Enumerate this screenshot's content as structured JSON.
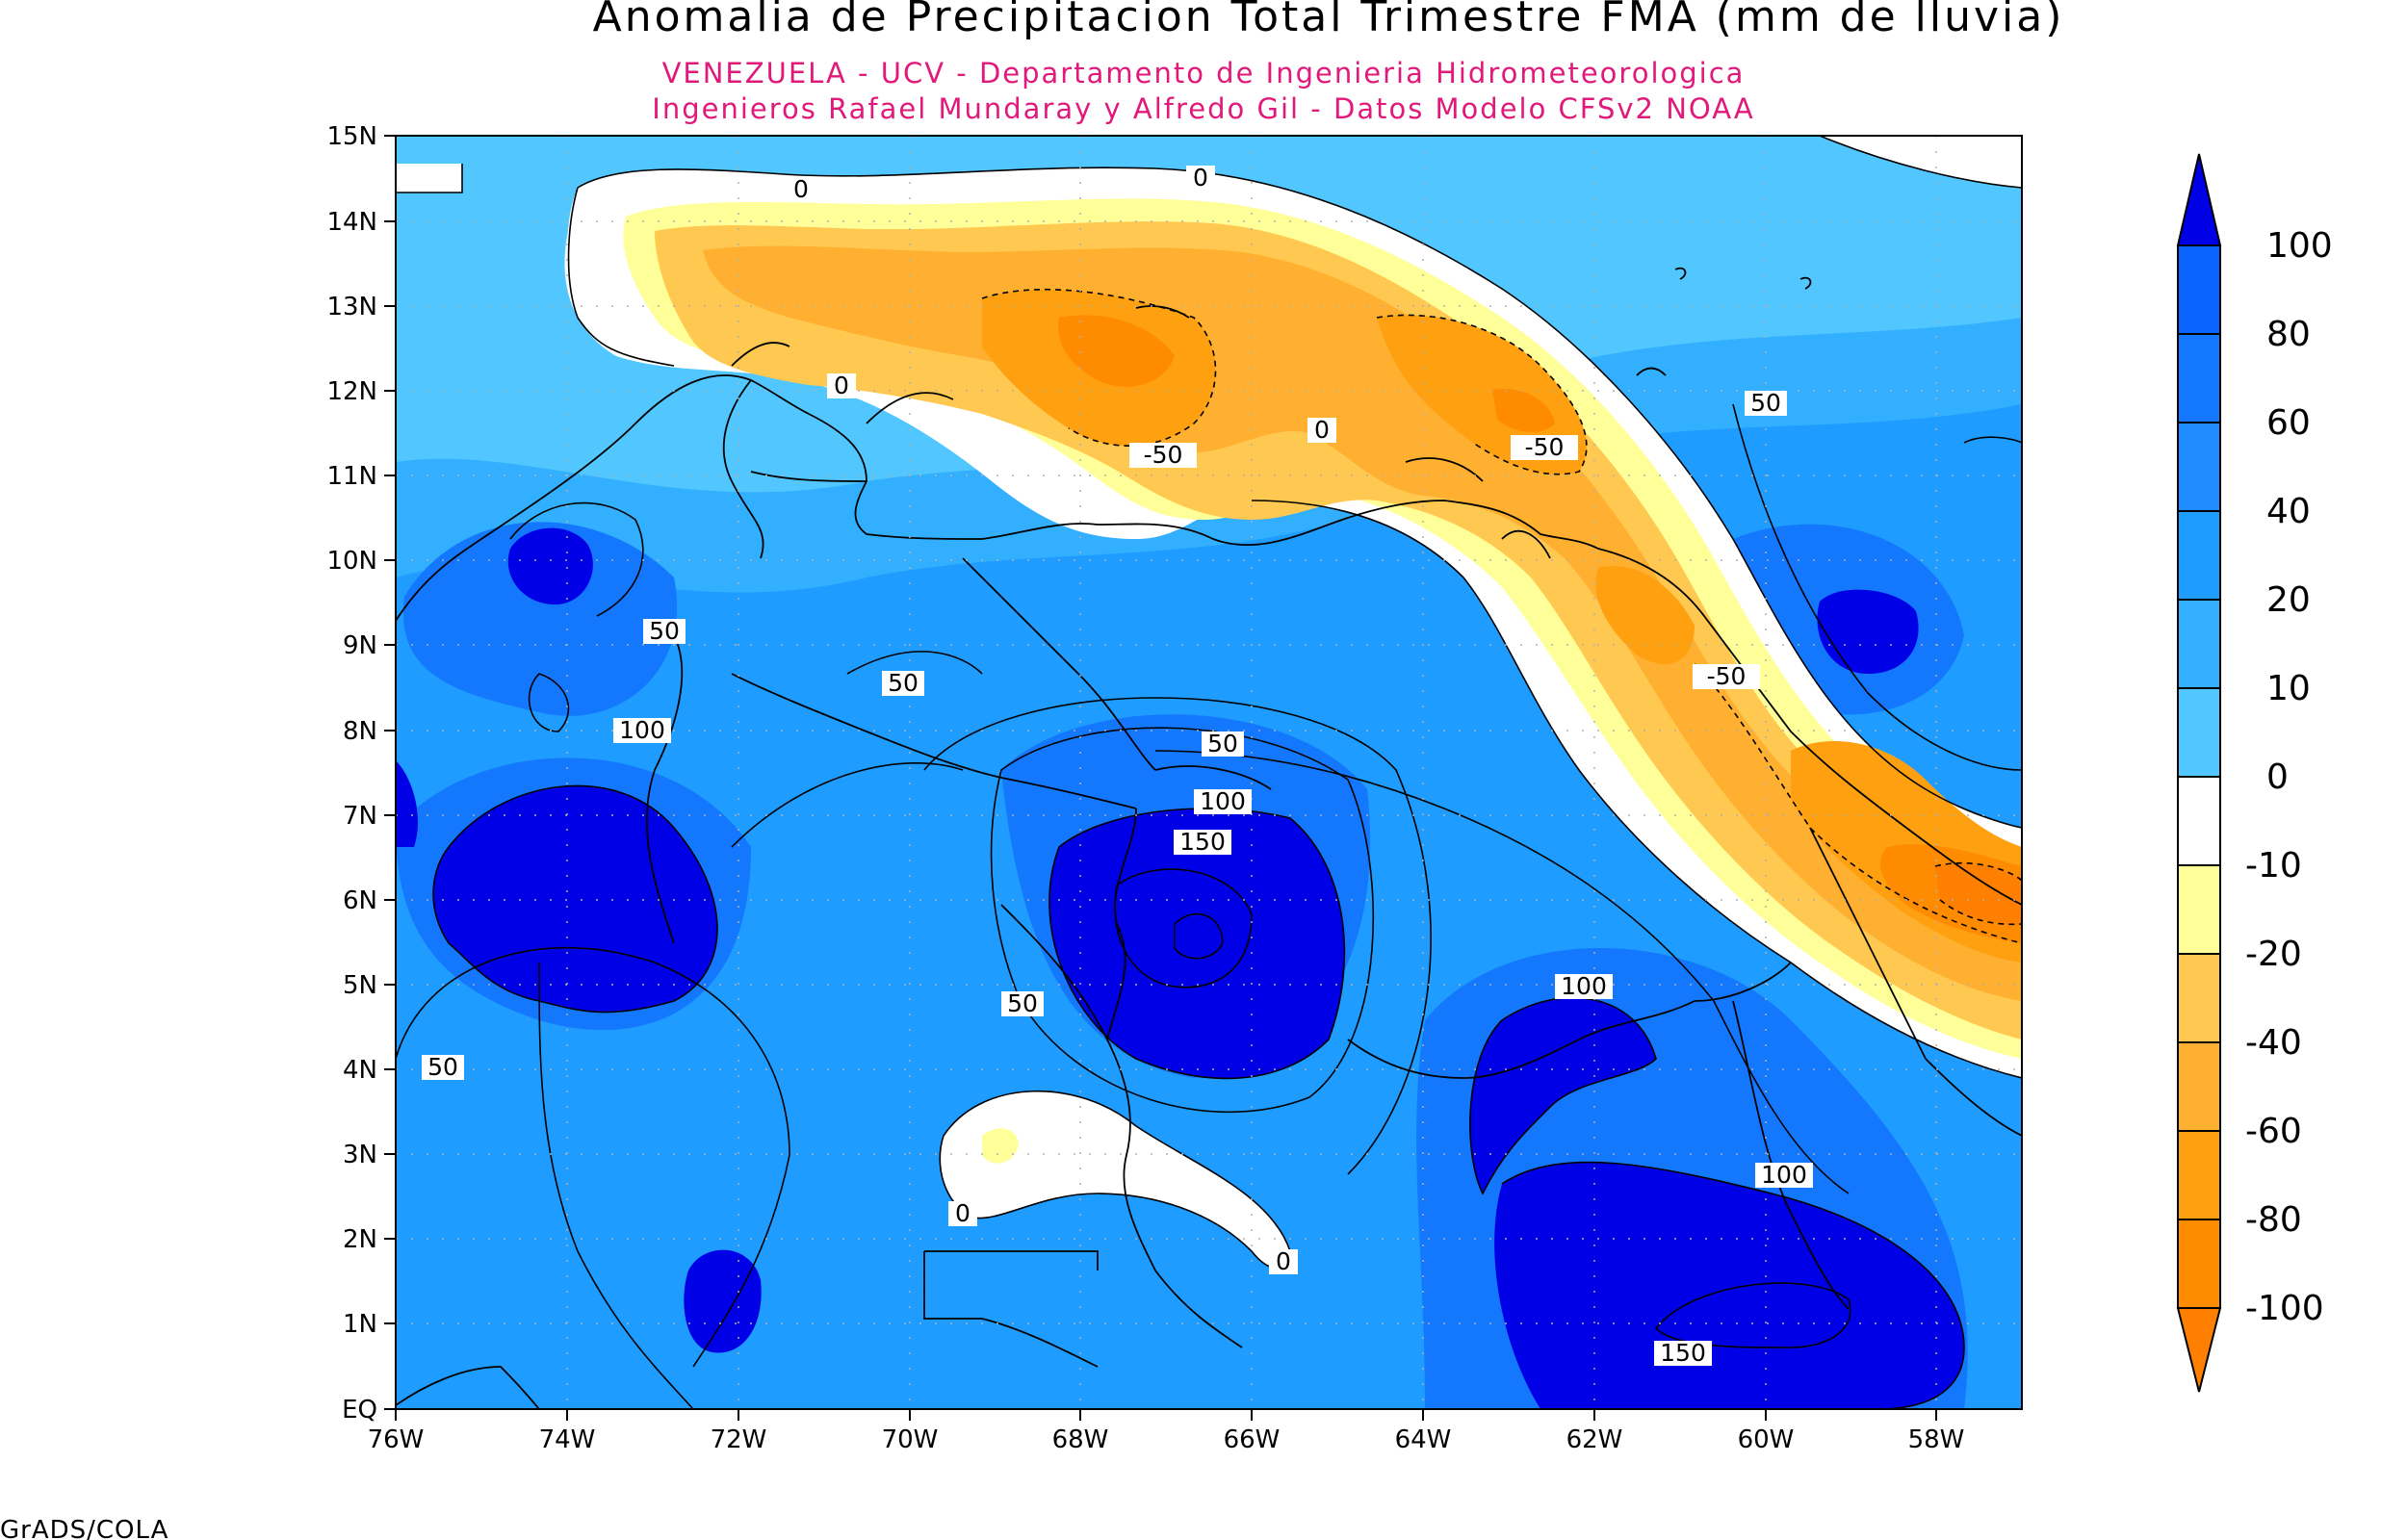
{
  "title": "Anomalia de Precipitacion Total Trimestre FMA (mm de lluvia)",
  "subtitle_1": "VENEZUELA - UCV - Departamento de Ingenieria Hidrometeorologica",
  "subtitle_2": "Ingenieros Rafael Mundaray y Alfredo Gil - Datos Modelo CFSv2 NOAA",
  "footer": "GrADS/COLA",
  "colors": {
    "subtitle": "#e0197a",
    "lt_m100": "#ff8000",
    "m100_m80": "#ff8c00",
    "m80_m60": "#ffa010",
    "m60_m40": "#ffb030",
    "m40_m20": "#ffc850",
    "m20_m10": "#ffff99",
    "m10_0": "#ffffff",
    "p0_10": "#52c7ff",
    "p10_20": "#32b0ff",
    "p20_40": "#1e9cff",
    "p40_60": "#1e8cff",
    "p60_80": "#1478ff",
    "p80_100": "#0a64ff",
    "gt_100": "#0000e6"
  },
  "map": {
    "lon_labels": [
      "76W",
      "74W",
      "72W",
      "70W",
      "68W",
      "66W",
      "64W",
      "62W",
      "60W",
      "58W"
    ],
    "lat_labels": [
      "EQ",
      "1N",
      "2N",
      "3N",
      "4N",
      "5N",
      "6N",
      "7N",
      "8N",
      "9N",
      "10N",
      "11N",
      "12N",
      "13N",
      "14N",
      "15N"
    ],
    "contour_labels": [
      "0",
      "0",
      "0",
      "0",
      "0",
      "-50",
      "-50",
      "-50",
      "50",
      "50",
      "50",
      "50",
      "50",
      "50",
      "100",
      "100",
      "100",
      "100",
      "150",
      "150"
    ]
  },
  "colorbar": {
    "labels": [
      "100",
      "80",
      "60",
      "40",
      "20",
      "10",
      "0",
      "-10",
      "-20",
      "-40",
      "-60",
      "-80",
      "-100"
    ]
  }
}
